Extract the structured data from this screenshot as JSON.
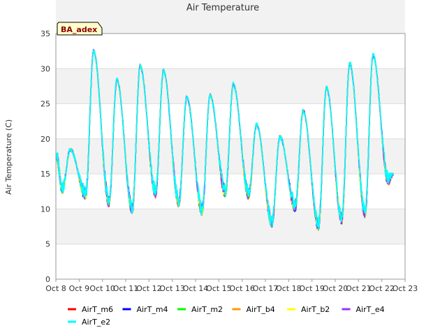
{
  "chart_data": {
    "type": "line",
    "title": "Air Temperature",
    "xlabel": "",
    "ylabel": "Air Temperature (C)",
    "site_label": "BA_adex",
    "ylim": [
      0,
      35
    ],
    "yticks": [
      0,
      5,
      10,
      15,
      20,
      25,
      30,
      35
    ],
    "xlim": [
      0,
      15
    ],
    "xticks": [
      "Oct 8",
      "Oct 9",
      "Oct 10",
      "Oct 11",
      "Oct 12",
      "Oct 13",
      "Oct 14",
      "Oct 15",
      "Oct 16",
      "Oct 17",
      "Oct 18",
      "Oct 19",
      "Oct 20",
      "Oct 21",
      "Oct 22",
      "Oct 23"
    ],
    "grid": "horizontal bands",
    "legend_position": "bottom",
    "x_start": "2023-10-08",
    "x_end": "2023-10-22T12:00",
    "daily_minmax": [
      {
        "day": "Oct 8",
        "max": 18.5,
        "min": 12.8
      },
      {
        "day": "Oct 9",
        "max": 32.5,
        "min": 12.0
      },
      {
        "day": "Oct 10",
        "max": 28.4,
        "min": 10.9
      },
      {
        "day": "Oct 11",
        "max": 30.4,
        "min": 9.9
      },
      {
        "day": "Oct 12",
        "max": 29.7,
        "min": 12.2
      },
      {
        "day": "Oct 13",
        "max": 25.9,
        "min": 10.9
      },
      {
        "day": "Oct 14",
        "max": 26.2,
        "min": 9.7
      },
      {
        "day": "Oct 15",
        "max": 27.8,
        "min": 12.3
      },
      {
        "day": "Oct 16",
        "max": 22.0,
        "min": 12.0
      },
      {
        "day": "Oct 17",
        "max": 20.3,
        "min": 8.0
      },
      {
        "day": "Oct 18",
        "max": 24.0,
        "min": 10.2
      },
      {
        "day": "Oct 19",
        "max": 27.3,
        "min": 7.6
      },
      {
        "day": "Oct 20",
        "max": 30.7,
        "min": 8.5
      },
      {
        "day": "Oct 21",
        "max": 31.9,
        "min": 9.4
      },
      {
        "day": "Oct 22",
        "max": 24.7,
        "min": 14.0
      }
    ],
    "series": [
      {
        "name": "AirT_m6",
        "color": "#ff0000"
      },
      {
        "name": "AirT_m4",
        "color": "#0000ff"
      },
      {
        "name": "AirT_m2",
        "color": "#00ff00"
      },
      {
        "name": "AirT_b4",
        "color": "#ff9900"
      },
      {
        "name": "AirT_b2",
        "color": "#ffff00"
      },
      {
        "name": "AirT_e4",
        "color": "#9933ff"
      },
      {
        "name": "AirT_e2",
        "color": "#00ffff"
      }
    ]
  },
  "colors": {
    "band": "#f2f2f2",
    "grid": "#dddddd",
    "axis": "#999999",
    "site_label_bg": "#ffffcc"
  }
}
